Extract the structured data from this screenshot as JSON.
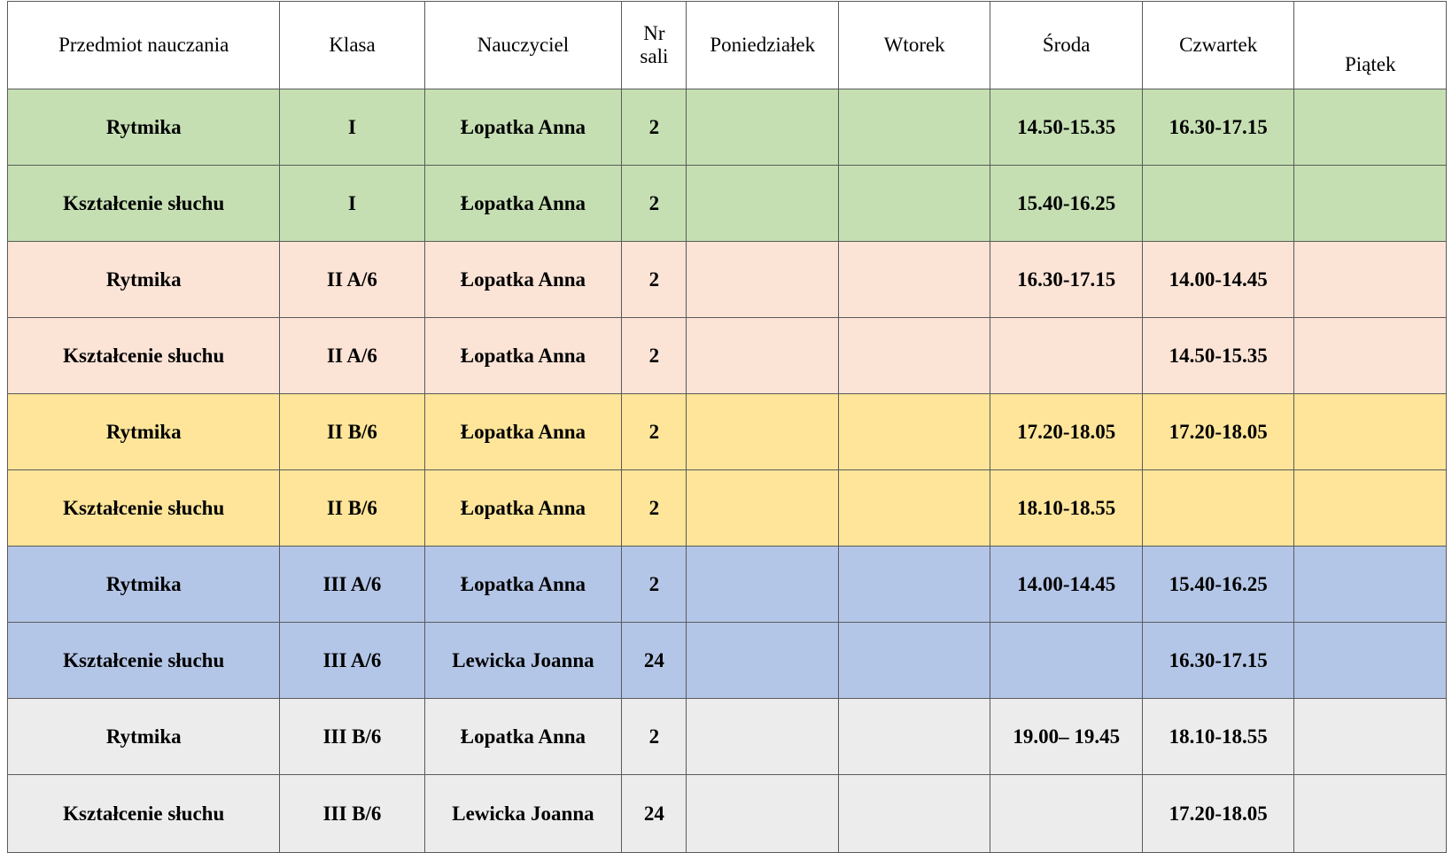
{
  "table": {
    "headers": [
      "Przedmiot nauczania",
      "Klasa",
      "Nauczyciel",
      "Nr sali",
      "Poniedziałek",
      "Wtorek",
      "Środa",
      "Czwartek",
      "Piątek"
    ],
    "rows": [
      {
        "subject": "Rytmika",
        "class": "I",
        "teacher": "Łopatka Anna",
        "room": "2",
        "mon": "",
        "tue": "",
        "wed": "14.50-15.35",
        "thu": "16.30-17.15",
        "fri": "",
        "color": "#c5dfb3"
      },
      {
        "subject": "Kształcenie słuchu",
        "class": "I",
        "teacher": "Łopatka Anna",
        "room": "2",
        "mon": "",
        "tue": "",
        "wed": "15.40-16.25",
        "thu": "",
        "fri": "",
        "color": "#c5dfb3"
      },
      {
        "subject": "Rytmika",
        "class": "II A/6",
        "teacher": "Łopatka Anna",
        "room": "2",
        "mon": "",
        "tue": "",
        "wed": "16.30-17.15",
        "thu": "14.00-14.45",
        "fri": "",
        "color": "#fbe3d6"
      },
      {
        "subject": "Kształcenie słuchu",
        "class": "II A/6",
        "teacher": "Łopatka Anna",
        "room": "2",
        "mon": "",
        "tue": "",
        "wed": "",
        "thu": "14.50-15.35",
        "fri": "",
        "color": "#fbe3d6"
      },
      {
        "subject": "Rytmika",
        "class": "II B/6",
        "teacher": "Łopatka Anna",
        "room": "2",
        "mon": "",
        "tue": "",
        "wed": "17.20-18.05",
        "thu": "17.20-18.05",
        "fri": "",
        "color": "#fee599"
      },
      {
        "subject": "Kształcenie słuchu",
        "class": "II B/6",
        "teacher": "Łopatka Anna",
        "room": "2",
        "mon": "",
        "tue": "",
        "wed": "18.10-18.55",
        "thu": "",
        "fri": "",
        "color": "#fee599"
      },
      {
        "subject": "Rytmika",
        "class": "III A/6",
        "teacher": "Łopatka Anna",
        "room": "2",
        "mon": "",
        "tue": "",
        "wed": "14.00-14.45",
        "thu": "15.40-16.25",
        "fri": "",
        "color": "#b4c6e7"
      },
      {
        "subject": "Kształcenie słuchu",
        "class": "III A/6",
        "teacher": "Lewicka Joanna",
        "room": "24",
        "mon": "",
        "tue": "",
        "wed": "",
        "thu": "16.30-17.15",
        "fri": "",
        "color": "#b4c6e7"
      },
      {
        "subject": "Rytmika",
        "class": "III B/6",
        "teacher": "Łopatka Anna",
        "room": "2",
        "mon": "",
        "tue": "",
        "wed": "19.00– 19.45",
        "thu": "18.10-18.55",
        "fri": "",
        "color": "#ececec"
      },
      {
        "subject": "Kształcenie słuchu",
        "class": "III B/6",
        "teacher": "Lewicka Joanna",
        "room": "24",
        "mon": "",
        "tue": "",
        "wed": "",
        "thu": "17.20-18.05",
        "fri": "",
        "color": "#ececec"
      }
    ]
  }
}
